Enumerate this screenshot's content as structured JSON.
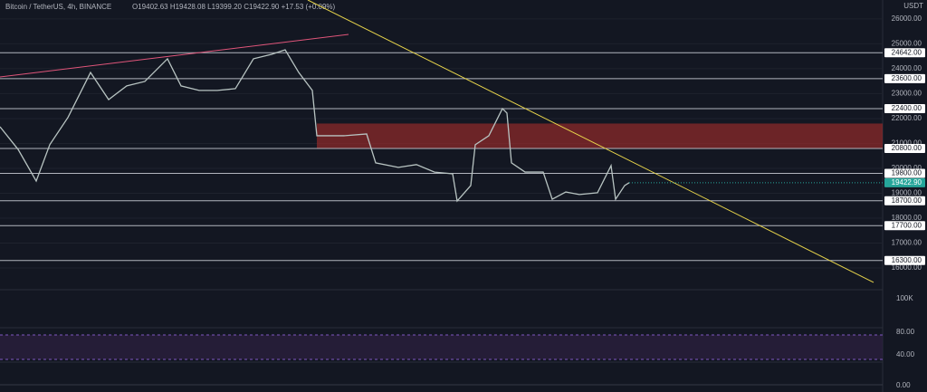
{
  "chart_data": {
    "type": "line",
    "title": "Bitcoin / TetherUS, 4h, BINANCE",
    "ohlc": "O19402.63 H19428.08 L19399.20 C19422.90 +17.53 (+0.09%)",
    "unit": "USDT",
    "x": [
      0,
      4,
      8,
      11,
      15,
      20,
      24,
      28,
      32,
      37,
      40,
      44,
      48,
      52,
      56,
      60,
      63,
      66,
      69,
      70,
      76,
      81,
      83,
      88,
      92,
      96,
      100,
      101,
      104,
      105,
      108,
      111,
      112,
      113,
      116,
      120,
      122,
      125,
      128,
      132,
      135,
      136,
      138,
      139
    ],
    "series": [
      {
        "color": "#b8c4c2",
        "values": [
          21670,
          20760,
          19490,
          20950,
          22040,
          23850,
          22760,
          23310,
          23490,
          24400,
          23310,
          23130,
          23130,
          23200,
          24400,
          24580,
          24760,
          23850,
          23130,
          21310,
          21310,
          21380,
          20220,
          20040,
          20150,
          19850,
          19780,
          18690,
          19310,
          20950,
          21310,
          22400,
          22220,
          20220,
          19850,
          19850,
          18760,
          19050,
          18950,
          19020,
          20110,
          18760,
          19310,
          19422.9
        ]
      }
    ],
    "xlim": [
      0,
      195
    ],
    "ylim": [
      15200,
      26760
    ],
    "yticks": [
      {
        "value": 26000,
        "label": "26000.00"
      },
      {
        "value": 25000,
        "label": "25000.00"
      },
      {
        "value": 24000,
        "label": "24000.00"
      },
      {
        "value": 23000,
        "label": "23000.00"
      },
      {
        "value": 22000,
        "label": "22000.00"
      },
      {
        "value": 21000,
        "label": "21000.00"
      },
      {
        "value": 20000,
        "label": "20000.00"
      },
      {
        "value": 19000,
        "label": "19000.00"
      },
      {
        "value": 18000,
        "label": "18000.00"
      },
      {
        "value": 17000,
        "label": "17000.00"
      },
      {
        "value": 16000,
        "label": "16000.00"
      }
    ],
    "grid": true,
    "levels": [
      {
        "value": 24642,
        "label": "24642.00"
      },
      {
        "value": 23600,
        "label": "23600.00"
      },
      {
        "value": 22400,
        "label": "22400.00"
      },
      {
        "value": 20800,
        "label": "20800.00"
      },
      {
        "value": 19800,
        "label": "19800.00"
      },
      {
        "value": 18700,
        "label": "18700.00"
      },
      {
        "value": 17700,
        "label": "17700.00"
      },
      {
        "value": 16300,
        "label": "16300.00"
      }
    ],
    "last_price": {
      "value": 19422.9,
      "label": "19422.90",
      "color": "#26a69a"
    },
    "zone": {
      "x": [
        70,
        195
      ],
      "y": [
        20800,
        21800
      ],
      "color": "#9c2b2b"
    },
    "trendlines": [
      {
        "x": [
          68,
          193
        ],
        "y": [
          26760,
          15420
        ],
        "color": "#e6d34b"
      },
      {
        "x": [
          0,
          77
        ],
        "y": [
          23670,
          25380
        ],
        "color": "#e0557a"
      }
    ],
    "volume_label": "100K",
    "rsi_labels": [
      "80.00",
      "40.00"
    ],
    "macd_label": "0.00"
  }
}
